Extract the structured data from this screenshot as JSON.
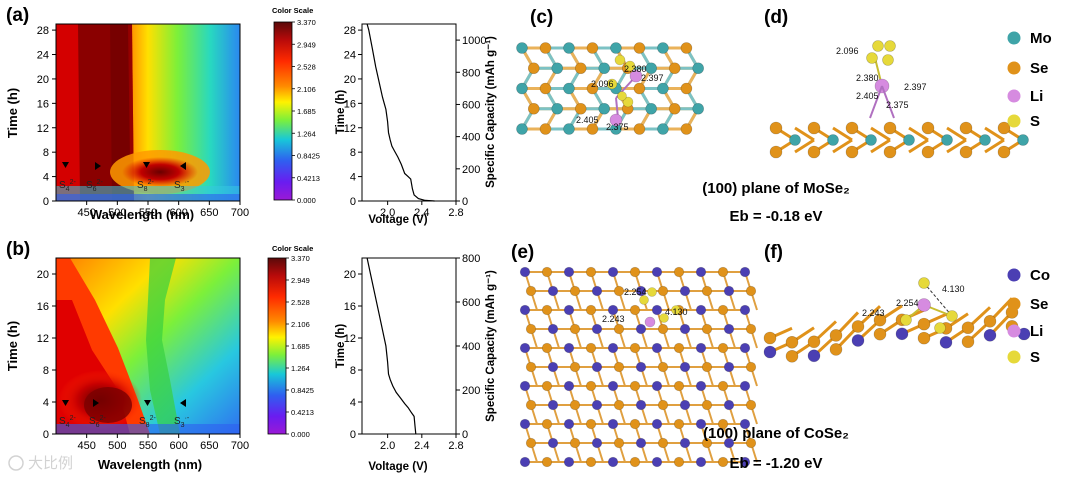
{
  "panels": {
    "a": "(a)",
    "b": "(b)",
    "c": "(c)",
    "d": "(d)",
    "e": "(e)",
    "f": "(f)"
  },
  "chart_data": [
    {
      "id": "a-contour",
      "type": "heatmap",
      "xlabel": "Wavelength (nm)",
      "ylabel": "Time (h)",
      "xlim": [
        400,
        700
      ],
      "ylim": [
        0,
        29
      ],
      "xticks": [
        "450",
        "500",
        "550",
        "600",
        "650",
        "700"
      ],
      "yticks": [
        "0",
        "4",
        "8",
        "12",
        "16",
        "20",
        "24",
        "28"
      ],
      "annotations": [
        {
          "label": "S",
          "sub": "4",
          "sup": "2-",
          "x": 430,
          "y": 4
        },
        {
          "label": "S",
          "sub": "6",
          "sup": "2-",
          "x": 480,
          "y": 4
        },
        {
          "label": "S",
          "sub": "8",
          "sup": "2-",
          "x": 555,
          "y": 4
        },
        {
          "label": "S",
          "sub": "3",
          "sup": "·-",
          "x": 610,
          "y": 4
        }
      ],
      "colorbar": {
        "title": "Color Scale",
        "ticks": [
          "3.370",
          "2.949",
          "2.528",
          "2.106",
          "1.685",
          "1.264",
          "0.8425",
          "0.4213",
          "0.000"
        ]
      }
    },
    {
      "id": "a-profile",
      "type": "line",
      "xlabel": "Voltage (V)",
      "ylabel": "Time (h)",
      "y2label": "Specific Capacity (mAh g⁻¹)",
      "xlim": [
        1.7,
        2.8
      ],
      "ylim": [
        0,
        29
      ],
      "y2lim": [
        0,
        1100
      ],
      "xticks": [
        "2.0",
        "2.4",
        "2.8"
      ],
      "yticks": [
        "0",
        "4",
        "8",
        "12",
        "16",
        "20",
        "24",
        "28"
      ],
      "y2ticks": [
        "0",
        "200",
        "400",
        "600",
        "800",
        "1000"
      ],
      "series": [
        {
          "x": [
            1.76,
            1.78,
            1.82,
            1.86,
            1.9,
            1.94,
            1.96,
            1.98,
            2.0,
            2.01,
            2.03,
            2.05,
            2.08,
            2.12,
            2.16,
            2.2,
            2.24,
            2.27,
            2.29,
            2.31,
            2.36,
            2.44,
            2.55
          ],
          "y": [
            29.0,
            28.0,
            25.0,
            22.0,
            19.5,
            17.0,
            16.0,
            15.0,
            13.0,
            11.2,
            10.0,
            9.0,
            8.2,
            7.2,
            6.0,
            4.5,
            4.0,
            3.6,
            2.0,
            1.0,
            0.4,
            0.1,
            0.0
          ]
        }
      ]
    },
    {
      "id": "b-contour",
      "type": "heatmap",
      "xlabel": "Wavelength (nm)",
      "ylabel": "Time (h)",
      "xlim": [
        400,
        700
      ],
      "ylim": [
        0,
        22
      ],
      "xticks": [
        "450",
        "500",
        "550",
        "600",
        "650",
        "700"
      ],
      "yticks": [
        "0",
        "4",
        "8",
        "12",
        "16",
        "20"
      ],
      "annotations": [
        {
          "label": "S",
          "sub": "4",
          "sup": "2-",
          "x": 430,
          "y": 4
        },
        {
          "label": "S",
          "sub": "6",
          "sup": "2-",
          "x": 480,
          "y": 4
        },
        {
          "label": "S",
          "sub": "8",
          "sup": "2-",
          "x": 555,
          "y": 4
        },
        {
          "label": "S",
          "sub": "3",
          "sup": "·-",
          "x": 610,
          "y": 4
        }
      ],
      "colorbar": {
        "title": "Color Scale",
        "ticks": [
          "3.370",
          "2.949",
          "2.528",
          "2.106",
          "1.685",
          "1.264",
          "0.8425",
          "0.4213",
          "0.000"
        ]
      }
    },
    {
      "id": "b-profile",
      "type": "line",
      "xlabel": "Voltage (V)",
      "ylabel": "Time (h)",
      "y2label": "Specific Capacity (mAh g⁻¹)",
      "xlim": [
        1.7,
        2.8
      ],
      "ylim": [
        0,
        22
      ],
      "y2lim": [
        0,
        800
      ],
      "xticks": [
        "2.0",
        "2.4",
        "2.8"
      ],
      "yticks": [
        "0",
        "4",
        "8",
        "12",
        "16",
        "20"
      ],
      "y2ticks": [
        "0",
        "200",
        "400",
        "600",
        "800"
      ],
      "series": [
        {
          "x": [
            1.76,
            1.8,
            1.85,
            1.9,
            1.94,
            1.98,
            2.0,
            2.01,
            2.03,
            2.06,
            2.1,
            2.15,
            2.2,
            2.24,
            2.27,
            2.29,
            2.31,
            2.32,
            2.33
          ],
          "y": [
            22.0,
            20.0,
            17.5,
            15.0,
            13.0,
            11.0,
            9.0,
            7.5,
            6.8,
            6.0,
            5.2,
            4.5,
            3.8,
            3.3,
            2.8,
            2.5,
            2.2,
            1.0,
            0.0
          ]
        }
      ]
    }
  ],
  "structures": {
    "c_bonds": [
      "2.380",
      "2.096",
      "2.397",
      "2.405",
      "2.375"
    ],
    "d_bonds": [
      "2.096",
      "2.380",
      "2.397",
      "2.405",
      "2.375"
    ],
    "e_bonds": [
      "2.254",
      "2.243",
      "4.130"
    ],
    "f_bonds": [
      "4.130",
      "2.243",
      "2.254"
    ],
    "legend_top": [
      {
        "label": "Mo",
        "color": "#3fa4a8"
      },
      {
        "label": "Se",
        "color": "#e0921a"
      },
      {
        "label": "Li",
        "color": "#d68be0"
      },
      {
        "label": "S",
        "color": "#e6d93a"
      }
    ],
    "legend_bottom": [
      {
        "label": "Co",
        "color": "#4b3fb3"
      },
      {
        "label": "Se",
        "color": "#e0921a"
      },
      {
        "label": "Li",
        "color": "#d68be0"
      },
      {
        "label": "S",
        "color": "#e6d93a"
      }
    ],
    "caption_top": "(100) plane of MoSe₂",
    "eb_top": "Eb = -0.18 eV",
    "caption_bottom": "(100) plane of CoSe₂",
    "eb_bottom": "Eb = -1.20 eV"
  },
  "watermark": "大比例"
}
